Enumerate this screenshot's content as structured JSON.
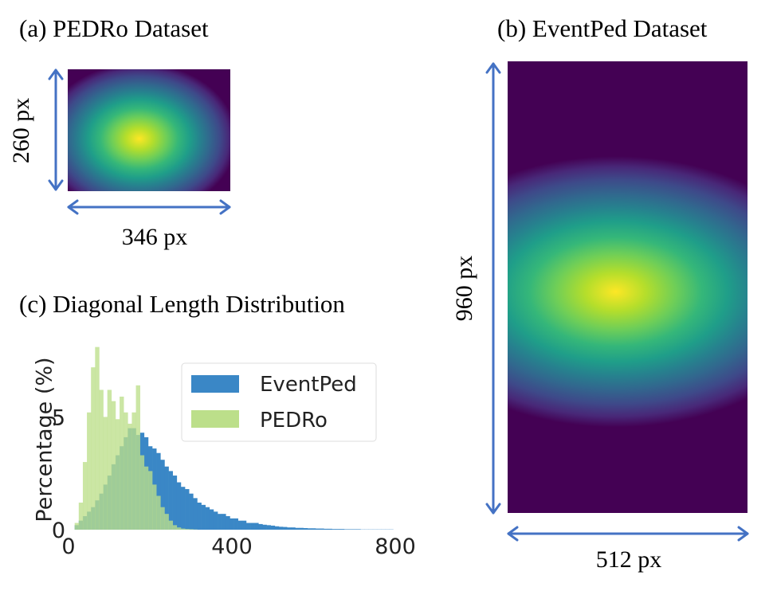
{
  "panel_a": {
    "title": "(a) PEDRo Dataset",
    "height_label": "260 px",
    "width_label": "346 px"
  },
  "panel_b": {
    "title": "(b) EventPed Dataset",
    "height_label": "960 px",
    "width_label": "512 px"
  },
  "panel_c": {
    "title": "(c) Diagonal Length Distribution"
  },
  "colors": {
    "arrow": "#4472c4",
    "eventped": "#3a87c6",
    "pedro": "#bcdf8a"
  },
  "chart_data": [
    {
      "type": "heatmap",
      "title": "(a) PEDRo Dataset",
      "width": 346,
      "height": 260,
      "unit": "px",
      "colormap": "viridis"
    },
    {
      "type": "heatmap",
      "title": "(b) EventPed Dataset",
      "width": 512,
      "height": 960,
      "unit": "px",
      "colormap": "viridis"
    },
    {
      "type": "bar",
      "title": "(c) Diagonal Length Distribution",
      "xlabel": "",
      "ylabel": "Percentage (%)",
      "xlim": [
        0,
        800
      ],
      "ylim": [
        0,
        8.3
      ],
      "xticks": [
        0,
        400,
        800
      ],
      "yticks": [
        0,
        5
      ],
      "grid": false,
      "legend": "top-right",
      "bin_width": 10,
      "series": [
        {
          "name": "EventPed",
          "x": [
            20,
            30,
            40,
            50,
            60,
            70,
            80,
            90,
            100,
            110,
            120,
            130,
            140,
            150,
            160,
            170,
            180,
            190,
            200,
            210,
            220,
            230,
            240,
            250,
            260,
            270,
            280,
            290,
            300,
            310,
            320,
            330,
            340,
            350,
            360,
            370,
            380,
            390,
            400,
            410,
            420,
            430,
            440,
            450,
            460,
            470,
            480,
            490,
            500,
            510,
            520,
            530,
            540,
            550,
            560,
            570,
            580,
            590,
            600,
            610,
            620,
            630,
            640,
            650,
            660,
            670,
            680,
            690,
            700,
            710,
            720,
            730,
            740,
            750,
            760,
            770,
            780,
            790
          ],
          "values": [
            0.2,
            0.4,
            0.6,
            0.8,
            1.0,
            1.3,
            1.6,
            2.0,
            2.4,
            2.9,
            3.3,
            3.7,
            4.1,
            4.5,
            4.5,
            4.2,
            4.3,
            4.1,
            3.7,
            3.6,
            3.4,
            3.1,
            2.8,
            2.6,
            2.4,
            2.1,
            1.9,
            1.8,
            1.6,
            1.4,
            1.2,
            1.1,
            1.0,
            0.9,
            0.8,
            0.7,
            0.7,
            0.6,
            0.5,
            0.5,
            0.4,
            0.4,
            0.3,
            0.3,
            0.3,
            0.25,
            0.22,
            0.2,
            0.18,
            0.15,
            0.13,
            0.12,
            0.1,
            0.1,
            0.08,
            0.08,
            0.07,
            0.06,
            0.06,
            0.05,
            0.05,
            0.04,
            0.04,
            0.03,
            0.03,
            0.03,
            0.02,
            0.02,
            0.02,
            0.02,
            0.01,
            0.01,
            0.01,
            0.01,
            0.01,
            0.01,
            0.01,
            0.01
          ]
        },
        {
          "name": "PEDRo",
          "x": [
            20,
            30,
            40,
            50,
            60,
            70,
            80,
            90,
            100,
            110,
            120,
            130,
            140,
            150,
            160,
            170,
            180,
            190,
            200,
            210,
            220,
            230,
            240,
            250,
            260,
            270,
            280,
            290,
            300,
            310
          ],
          "values": [
            0.3,
            1.2,
            3.0,
            5.2,
            7.2,
            8.1,
            6.2,
            5.0,
            6.2,
            5.7,
            4.9,
            5.9,
            5.2,
            4.7,
            5.2,
            6.4,
            3.3,
            2.8,
            2.6,
            2.0,
            1.5,
            1.0,
            0.7,
            0.4,
            0.2,
            0.1,
            0.05,
            0.03,
            0.02,
            0.01
          ]
        }
      ]
    }
  ]
}
